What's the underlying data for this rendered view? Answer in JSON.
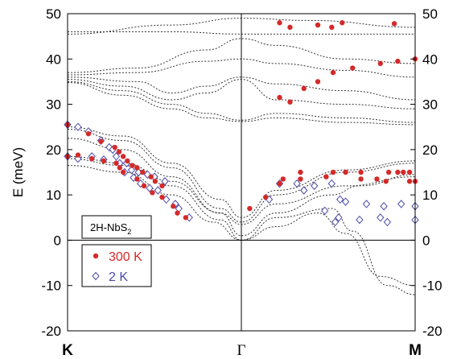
{
  "chart_data": {
    "type": "scatter",
    "title": "",
    "xlabel": "",
    "ylabel": "E (meV)",
    "ylim": [
      -20,
      50
    ],
    "y_ticks": [
      -20,
      -10,
      0,
      10,
      20,
      30,
      40,
      50
    ],
    "x_ticks": [
      "K",
      "Γ",
      "M"
    ],
    "grid": false,
    "sample_label": "2H-NbS",
    "sample_label_sub": "2",
    "legend": {
      "placement": "lower-left"
    },
    "colors": {
      "s300": "#d42a2a",
      "s2": "#4a4aa8",
      "calc": "#333333"
    },
    "series": [
      {
        "name": "300 K",
        "marker": "filled-circle",
        "points": [
          {
            "x": 0.0,
            "y": 25.5
          },
          {
            "x": 0.0,
            "y": 18.5
          },
          {
            "x": 0.15,
            "y": 18.8
          },
          {
            "x": 0.3,
            "y": 23.5
          },
          {
            "x": 0.35,
            "y": 18.0
          },
          {
            "x": 0.48,
            "y": 21.8
          },
          {
            "x": 0.52,
            "y": 17.5
          },
          {
            "x": 0.68,
            "y": 20.5
          },
          {
            "x": 0.74,
            "y": 19.5
          },
          {
            "x": 0.8,
            "y": 18.5
          },
          {
            "x": 0.86,
            "y": 17.5
          },
          {
            "x": 0.7,
            "y": 17.0
          },
          {
            "x": 0.75,
            "y": 16.0
          },
          {
            "x": 0.8,
            "y": 15.0
          },
          {
            "x": 0.93,
            "y": 16.5
          },
          {
            "x": 1.0,
            "y": 16.0
          },
          {
            "x": 1.08,
            "y": 15.0
          },
          {
            "x": 1.2,
            "y": 14.0
          },
          {
            "x": 1.26,
            "y": 13.0
          },
          {
            "x": 1.36,
            "y": 12.0
          },
          {
            "x": 1.0,
            "y": 13.5
          },
          {
            "x": 1.1,
            "y": 12.0
          },
          {
            "x": 1.22,
            "y": 10.5
          },
          {
            "x": 1.36,
            "y": 9.5
          },
          {
            "x": 1.52,
            "y": 7.5
          },
          {
            "x": 1.58,
            "y": 6.0
          },
          {
            "x": 1.7,
            "y": 5.0
          },
          {
            "x": 2.62,
            "y": 7.0
          },
          {
            "x": 2.85,
            "y": 9.5
          },
          {
            "x": 3.05,
            "y": 12.5
          },
          {
            "x": 3.35,
            "y": 15.0
          },
          {
            "x": 3.72,
            "y": 14.0
          },
          {
            "x": 3.82,
            "y": 15.0
          },
          {
            "x": 4.0,
            "y": 15.0
          },
          {
            "x": 4.22,
            "y": 15.0
          },
          {
            "x": 4.22,
            "y": 13.5
          },
          {
            "x": 4.45,
            "y": 13.5
          },
          {
            "x": 4.58,
            "y": 13.0
          },
          {
            "x": 4.62,
            "y": 15.0
          },
          {
            "x": 4.75,
            "y": 15.0
          },
          {
            "x": 4.83,
            "y": 15.0
          },
          {
            "x": 4.92,
            "y": 15.0
          },
          {
            "x": 4.92,
            "y": 13.0
          },
          {
            "x": 5.0,
            "y": 13.0
          },
          {
            "x": 3.35,
            "y": 13.5
          },
          {
            "x": 3.1,
            "y": 13.5
          },
          {
            "x": 3.05,
            "y": 31.5
          },
          {
            "x": 3.2,
            "y": 30.5
          },
          {
            "x": 3.4,
            "y": 33.5
          },
          {
            "x": 3.6,
            "y": 35.0
          },
          {
            "x": 3.82,
            "y": 37.0
          },
          {
            "x": 4.1,
            "y": 38.0
          },
          {
            "x": 4.5,
            "y": 39.0
          },
          {
            "x": 4.75,
            "y": 39.5
          },
          {
            "x": 5.0,
            "y": 40.0
          },
          {
            "x": 3.05,
            "y": 48.0
          },
          {
            "x": 3.2,
            "y": 47.0
          },
          {
            "x": 3.6,
            "y": 47.5
          },
          {
            "x": 3.8,
            "y": 47.0
          },
          {
            "x": 3.95,
            "y": 48.0
          },
          {
            "x": 4.7,
            "y": 47.8
          }
        ]
      },
      {
        "name": "2 K",
        "marker": "open-diamond",
        "points": [
          {
            "x": 0.0,
            "y": 25.5
          },
          {
            "x": 0.0,
            "y": 18.5
          },
          {
            "x": 0.15,
            "y": 25.0
          },
          {
            "x": 0.15,
            "y": 18.0
          },
          {
            "x": 0.3,
            "y": 24.0
          },
          {
            "x": 0.35,
            "y": 18.5
          },
          {
            "x": 0.48,
            "y": 22.0
          },
          {
            "x": 0.52,
            "y": 17.8
          },
          {
            "x": 0.6,
            "y": 20.5
          },
          {
            "x": 0.65,
            "y": 20.0
          },
          {
            "x": 0.7,
            "y": 18.5
          },
          {
            "x": 0.75,
            "y": 17.0
          },
          {
            "x": 0.85,
            "y": 17.0
          },
          {
            "x": 0.92,
            "y": 15.5
          },
          {
            "x": 1.02,
            "y": 15.0
          },
          {
            "x": 1.15,
            "y": 14.5
          },
          {
            "x": 1.25,
            "y": 14.0
          },
          {
            "x": 1.4,
            "y": 13.0
          },
          {
            "x": 0.82,
            "y": 15.0
          },
          {
            "x": 0.95,
            "y": 13.8
          },
          {
            "x": 1.05,
            "y": 12.5
          },
          {
            "x": 1.18,
            "y": 11.5
          },
          {
            "x": 1.3,
            "y": 11.0
          },
          {
            "x": 1.42,
            "y": 9.0
          },
          {
            "x": 1.55,
            "y": 8.0
          },
          {
            "x": 1.6,
            "y": 7.0
          },
          {
            "x": 1.75,
            "y": 5.0
          },
          {
            "x": 2.9,
            "y": 9.0
          },
          {
            "x": 3.05,
            "y": 12.5
          },
          {
            "x": 3.3,
            "y": 12.5
          },
          {
            "x": 3.4,
            "y": 11.0
          },
          {
            "x": 3.55,
            "y": 12.0
          },
          {
            "x": 3.8,
            "y": 12.5
          },
          {
            "x": 3.92,
            "y": 9.0
          },
          {
            "x": 4.0,
            "y": 8.5
          },
          {
            "x": 4.3,
            "y": 8.0
          },
          {
            "x": 4.55,
            "y": 7.5
          },
          {
            "x": 4.8,
            "y": 8.0
          },
          {
            "x": 5.0,
            "y": 7.5
          },
          {
            "x": 3.7,
            "y": 6.5
          },
          {
            "x": 3.9,
            "y": 5.0
          },
          {
            "x": 3.85,
            "y": 4.0
          },
          {
            "x": 4.2,
            "y": 4.5
          },
          {
            "x": 4.5,
            "y": 5.0
          },
          {
            "x": 4.6,
            "y": 4.0
          },
          {
            "x": 5.0,
            "y": 4.5
          }
        ]
      }
    ],
    "calculated_bands": [
      {
        "name": "",
        "points": [
          [
            0,
            46
          ],
          [
            1.5,
            46
          ],
          [
            2.5,
            45.5
          ],
          [
            3.5,
            45.5
          ],
          [
            5,
            45.5
          ]
        ]
      },
      {
        "name": "",
        "points": [
          [
            0,
            45.5
          ],
          [
            1.5,
            47.5
          ],
          [
            2.5,
            49
          ],
          [
            3.5,
            48.5
          ],
          [
            5,
            47
          ]
        ]
      },
      {
        "name": "",
        "points": [
          [
            0,
            37
          ],
          [
            1,
            38
          ],
          [
            2,
            42
          ],
          [
            2.5,
            44.5
          ],
          [
            3,
            43
          ],
          [
            4,
            40
          ],
          [
            5,
            39
          ]
        ]
      },
      {
        "name": "",
        "points": [
          [
            0,
            36.5
          ],
          [
            1,
            37
          ],
          [
            2,
            39.5
          ],
          [
            2.5,
            40
          ],
          [
            3,
            39
          ],
          [
            4,
            37.5
          ],
          [
            5,
            36
          ]
        ]
      },
      {
        "name": "",
        "points": [
          [
            0,
            36
          ],
          [
            1,
            35
          ],
          [
            1.5,
            32.5
          ],
          [
            2,
            34
          ],
          [
            2.5,
            36
          ],
          [
            3,
            34.5
          ],
          [
            4,
            33
          ],
          [
            5,
            31
          ]
        ]
      },
      {
        "name": "",
        "points": [
          [
            0,
            35.5
          ],
          [
            0.8,
            34
          ],
          [
            1.5,
            31
          ],
          [
            2,
            32.5
          ],
          [
            2.5,
            35.5
          ],
          [
            3,
            31
          ],
          [
            4,
            30
          ],
          [
            5,
            29
          ]
        ]
      },
      {
        "name": "",
        "points": [
          [
            0,
            35
          ],
          [
            0.8,
            33
          ],
          [
            1.5,
            30
          ],
          [
            2,
            28
          ],
          [
            2.5,
            26.5
          ],
          [
            3,
            28
          ],
          [
            4,
            27
          ],
          [
            5,
            26
          ]
        ]
      },
      {
        "name": "",
        "points": [
          [
            0,
            34.8
          ],
          [
            0.8,
            32
          ],
          [
            1.5,
            29
          ],
          [
            2,
            27
          ],
          [
            2.5,
            26.2
          ],
          [
            3,
            27
          ],
          [
            4,
            26
          ],
          [
            5,
            25.5
          ]
        ]
      },
      {
        "name": "",
        "points": [
          [
            0,
            16.5
          ],
          [
            0.8,
            15
          ],
          [
            1.5,
            10
          ],
          [
            2.1,
            4
          ],
          [
            2.5,
            0
          ],
          [
            3,
            3
          ],
          [
            3.6,
            6
          ],
          [
            4,
            1.5
          ],
          [
            4.5,
            -8
          ],
          [
            5,
            -10
          ]
        ]
      },
      {
        "name": "",
        "points": [
          [
            0,
            18
          ],
          [
            0.8,
            16.5
          ],
          [
            1.5,
            12
          ],
          [
            2.2,
            4.5
          ],
          [
            2.5,
            0
          ],
          [
            3,
            5
          ],
          [
            3.8,
            7
          ],
          [
            4.1,
            2
          ],
          [
            4.6,
            -10
          ],
          [
            5,
            -12
          ]
        ]
      },
      {
        "name": "",
        "points": [
          [
            0,
            22.5
          ],
          [
            0.8,
            20
          ],
          [
            1.5,
            14
          ],
          [
            2.2,
            6
          ],
          [
            2.5,
            3.5
          ],
          [
            3,
            8
          ],
          [
            4,
            12
          ],
          [
            5,
            14
          ]
        ]
      },
      {
        "name": "",
        "points": [
          [
            0,
            24.5
          ],
          [
            0.8,
            22
          ],
          [
            1.5,
            16
          ],
          [
            2.2,
            7
          ],
          [
            2.5,
            4
          ],
          [
            3,
            10
          ],
          [
            4,
            15
          ],
          [
            5,
            17
          ]
        ]
      },
      {
        "name": "",
        "points": [
          [
            0,
            25
          ],
          [
            0.8,
            23
          ],
          [
            1.5,
            17
          ],
          [
            2.2,
            9
          ],
          [
            2.5,
            5
          ],
          [
            3,
            11
          ],
          [
            4,
            15.5
          ],
          [
            5,
            17.5
          ]
        ]
      },
      {
        "name": "",
        "points": [
          [
            0,
            18.5
          ],
          [
            0.8,
            17
          ],
          [
            1.5,
            13
          ],
          [
            2.2,
            6
          ],
          [
            2.5,
            1
          ],
          [
            3,
            6
          ],
          [
            3.8,
            10
          ],
          [
            4.2,
            12
          ],
          [
            5,
            14.5
          ]
        ]
      }
    ]
  }
}
